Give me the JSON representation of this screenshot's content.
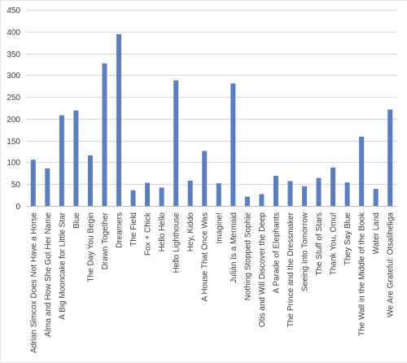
{
  "chart_data": {
    "type": "bar",
    "title": "",
    "xlabel": "",
    "ylabel": "",
    "ylim": [
      0,
      450
    ],
    "yticks": [
      0,
      50,
      100,
      150,
      200,
      250,
      300,
      350,
      400,
      450
    ],
    "grid": true,
    "legend": "none",
    "bar_color": "#5b7fbd",
    "categories": [
      "Adrian Simcox Does Not Have a Horse",
      "Alma and How She Got Her Name",
      "A Big Mooncake for Little Star",
      "Blue",
      "The Day You Begin",
      "Drawn Together",
      "Dreamers",
      "The Field",
      "Fox + Chick",
      "Hello Hello",
      "Hello Lighthouse",
      "Hey, Kiddo",
      "A House That Once Was",
      "Imagine!",
      "Julián Is a Mermaid",
      "Nothing Stopped Sophie",
      "Otis and Will Discover the Deep",
      "A Parade of Elephants",
      "The Prince and the Dressmaker",
      "Seeing Into Tomorrow",
      "The Stuff of Stars",
      "Thank You, Omu!",
      "They Say Blue",
      "The Wall in the Middle of the Book",
      "Water Land",
      "We Are Grateful: Otsaliheliga"
    ],
    "values": [
      106,
      86,
      208,
      219,
      116,
      327,
      394,
      36,
      53,
      42,
      288,
      58,
      126,
      52,
      281,
      21,
      27,
      69,
      57,
      45,
      64,
      88,
      54,
      159,
      39,
      221
    ]
  }
}
